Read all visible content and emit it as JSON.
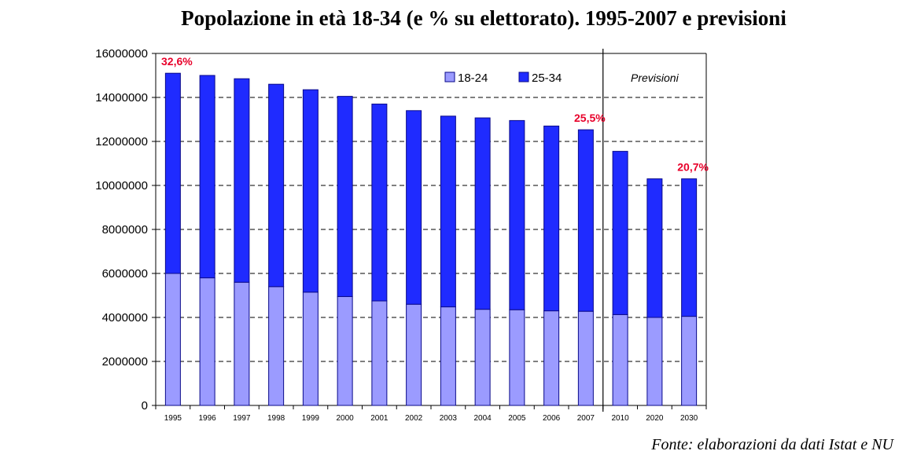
{
  "chart_data": {
    "type": "bar",
    "stacked": true,
    "title": "Popolazione in età 18-34 (e % su elettorato). 1995-2007 e previsioni",
    "categories": [
      "1995",
      "1996",
      "1997",
      "1998",
      "1999",
      "2000",
      "2001",
      "2002",
      "2003",
      "2004",
      "2005",
      "2006",
      "2007",
      "2010",
      "2020",
      "2030"
    ],
    "series": [
      {
        "name": "18-24",
        "color": "#9b9bff",
        "values": [
          6000000,
          5800000,
          5600000,
          5400000,
          5150000,
          4950000,
          4750000,
          4600000,
          4480000,
          4370000,
          4350000,
          4300000,
          4280000,
          4130000,
          4000000,
          4050000
        ]
      },
      {
        "name": "25-34",
        "color": "#1f2bff",
        "values": [
          9100000,
          9200000,
          9250000,
          9200000,
          9200000,
          9100000,
          8950000,
          8800000,
          8670000,
          8700000,
          8600000,
          8400000,
          8250000,
          7420000,
          6300000,
          6250000
        ]
      }
    ],
    "ylim": [
      0,
      16000000
    ],
    "yticks": [
      0,
      2000000,
      4000000,
      6000000,
      8000000,
      10000000,
      12000000,
      14000000,
      16000000
    ],
    "ytick_labels": [
      "0",
      "2000000",
      "4000000",
      "6000000",
      "8000000",
      "10000000",
      "12000000",
      "14000000",
      "16000000"
    ],
    "grid": "dashed horizontal",
    "legend_placement": "top-right",
    "annotations": [
      {
        "text": "32,6%",
        "category": "1995"
      },
      {
        "text": "25,5%",
        "category": "2007"
      },
      {
        "text": "20,7%",
        "category": "2030"
      },
      {
        "text": "Previsioni",
        "category": "2010-2030"
      }
    ],
    "divider_after_category": "2007"
  },
  "source_note": "Fonte: elaborazioni da dati Istat e NU",
  "colors": {
    "annotation": "#e8002a",
    "bar_edge": "#0a0a8a",
    "axis": "#000000"
  }
}
